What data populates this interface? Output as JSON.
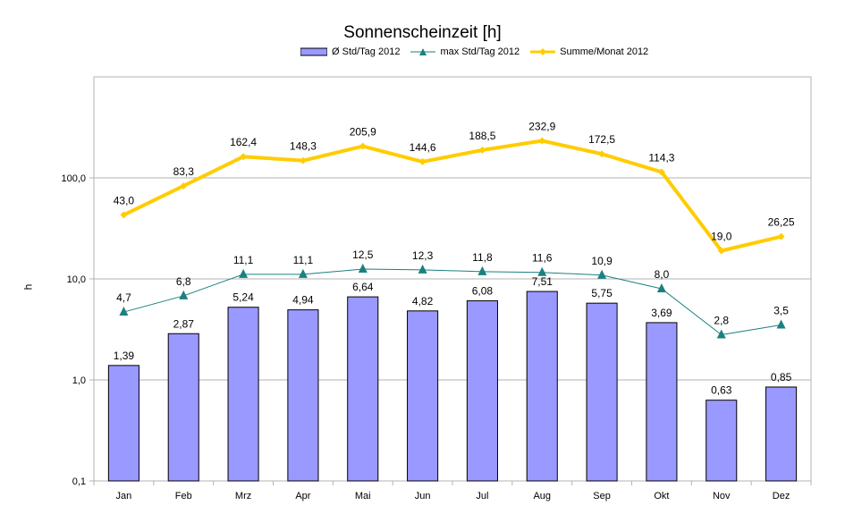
{
  "chart_data": {
    "type": "bar",
    "title": "Sonnenscheinzeit [h]",
    "ylabel": "h",
    "xlabel": "",
    "y_scale": "log",
    "ylim": [
      0.1,
      1000
    ],
    "y_ticks": [
      0.1,
      1,
      10,
      100
    ],
    "y_tick_labels": [
      "0,1",
      "1,0",
      "10,0",
      "100,0"
    ],
    "grid": true,
    "legend_position": "top",
    "categories": [
      "Jan",
      "Feb",
      "Mrz",
      "Apr",
      "Mai",
      "Jun",
      "Jul",
      "Aug",
      "Sep",
      "Okt",
      "Nov",
      "Dez"
    ],
    "series": [
      {
        "name": "Ø  Std/Tag 2012",
        "type": "bar",
        "color": "#9999ff",
        "values": [
          1.39,
          2.87,
          5.24,
          4.94,
          6.64,
          4.82,
          6.08,
          7.51,
          5.75,
          3.69,
          0.63,
          0.85
        ],
        "labels": [
          "1,39",
          "2,87",
          "5,24",
          "4,94",
          "6,64",
          "4,82",
          "6,08",
          "7,51",
          "5,75",
          "3,69",
          "0,63",
          "0,85"
        ]
      },
      {
        "name": "max Std/Tag 2012",
        "type": "line",
        "color": "#1a8080",
        "marker": "triangle",
        "values": [
          4.7,
          6.8,
          11.1,
          11.1,
          12.5,
          12.3,
          11.8,
          11.6,
          10.9,
          8.0,
          2.8,
          3.5
        ],
        "labels": [
          "4,7",
          "6,8",
          "11,1",
          "11,1",
          "12,5",
          "12,3",
          "11,8",
          "11,6",
          "10,9",
          "8,0",
          "2,8",
          "3,5"
        ]
      },
      {
        "name": "Summe/Monat 2012",
        "type": "line",
        "color": "#ffcc00",
        "marker": "diamond",
        "values": [
          43.0,
          83.3,
          162.4,
          148.3,
          205.9,
          144.6,
          188.5,
          232.9,
          172.5,
          114.3,
          19.0,
          26.25
        ],
        "labels": [
          "43,0",
          "83,3",
          "162,4",
          "148,3",
          "205,9",
          "144,6",
          "188,5",
          "232,9",
          "172,5",
          "114,3",
          "19,0",
          "26,25"
        ]
      }
    ]
  }
}
